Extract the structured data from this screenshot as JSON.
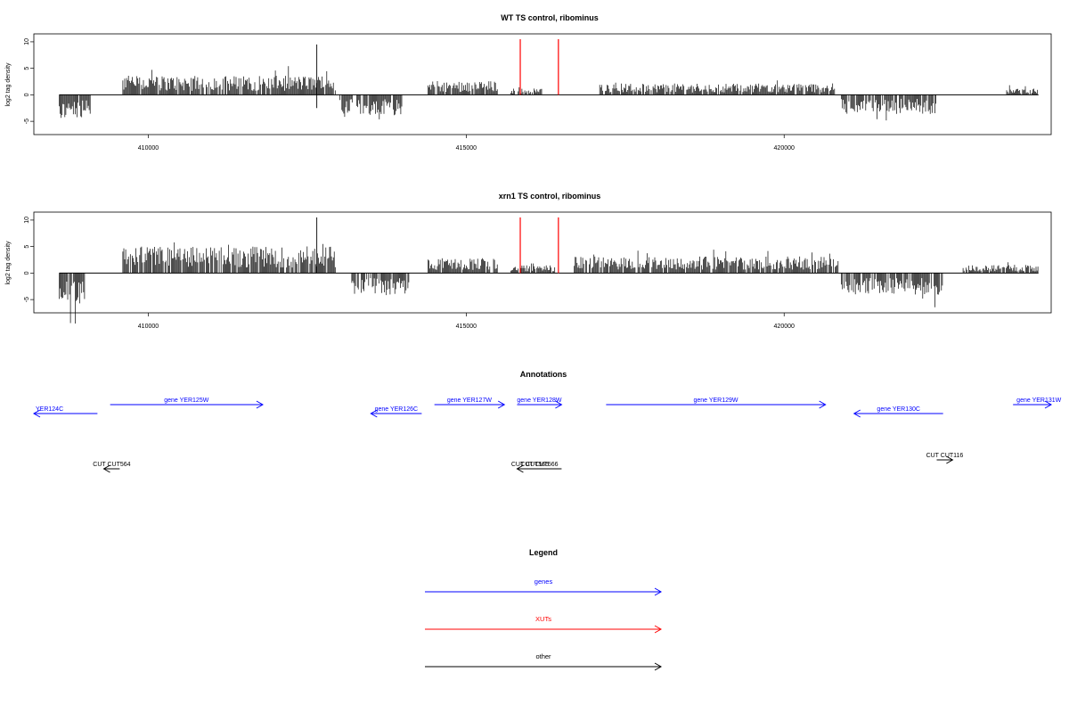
{
  "chart_data": [
    {
      "type": "bar",
      "title": "WT TS control, ribominus",
      "xlabel": "",
      "ylabel": "log2 tag density",
      "xlim": [
        408200,
        424200
      ],
      "ylim": [
        -7.5,
        11.5
      ],
      "yticks": [
        -5,
        0,
        5,
        10
      ],
      "xticks": [
        410000,
        415000,
        420000
      ],
      "highlight_lines": [
        {
          "x": 415850,
          "y": 10.5,
          "color": "#ff0000"
        },
        {
          "x": 416450,
          "y": 10.5,
          "color": "#ff0000"
        }
      ],
      "segments": [
        {
          "start": 408600,
          "end": 409100,
          "level": -4.0
        },
        {
          "start": 409600,
          "end": 412950,
          "level": 3.0
        },
        {
          "start": 413000,
          "end": 414000,
          "level": -3.2
        },
        {
          "start": 414400,
          "end": 415500,
          "level": 2.2
        },
        {
          "start": 415700,
          "end": 416200,
          "level": 1.0
        },
        {
          "start": 417100,
          "end": 420800,
          "level": 1.8
        },
        {
          "start": 420900,
          "end": 422400,
          "level": -3.0
        },
        {
          "start": 423500,
          "end": 424000,
          "level": 1.0
        }
      ],
      "peaks": [
        {
          "x": 412650,
          "y": 9.5
        },
        {
          "x": 412650,
          "y": -2.5
        }
      ]
    },
    {
      "type": "bar",
      "title": "xrn1 TS control, ribominus",
      "xlabel": "",
      "ylabel": "log2 tag density",
      "xlim": [
        408200,
        424200
      ],
      "ylim": [
        -7.5,
        11.5
      ],
      "yticks": [
        -5,
        0,
        5,
        10
      ],
      "xticks": [
        410000,
        415000,
        420000
      ],
      "highlight_lines": [
        {
          "x": 415850,
          "y": 10.5,
          "color": "#ff0000"
        },
        {
          "x": 416450,
          "y": 10.5,
          "color": "#ff0000"
        }
      ],
      "segments": [
        {
          "start": 408600,
          "end": 409000,
          "level": -5.0
        },
        {
          "start": 409600,
          "end": 412950,
          "level": 4.2
        },
        {
          "start": 413200,
          "end": 414100,
          "level": -3.5
        },
        {
          "start": 414400,
          "end": 415500,
          "level": 2.4
        },
        {
          "start": 415700,
          "end": 416400,
          "level": 1.2
        },
        {
          "start": 416700,
          "end": 420850,
          "level": 2.6
        },
        {
          "start": 420900,
          "end": 422500,
          "level": -3.5
        },
        {
          "start": 422800,
          "end": 424000,
          "level": 1.3
        }
      ],
      "peaks": [
        {
          "x": 412650,
          "y": 10.5
        }
      ]
    }
  ],
  "annotations": {
    "title": "Annotations",
    "genes": [
      {
        "label": "YER124C",
        "start": 408200,
        "end": 409200,
        "dir": "left",
        "row": "lower"
      },
      {
        "label": "gene YER125W",
        "start": 409400,
        "end": 411800,
        "dir": "right",
        "row": "upper"
      },
      {
        "label": "gene YER126C",
        "start": 413500,
        "end": 414300,
        "dir": "left",
        "row": "lower"
      },
      {
        "label": "gene YER127W",
        "start": 414500,
        "end": 415600,
        "dir": "right",
        "row": "upper"
      },
      {
        "label": "gene YER128W",
        "start": 415800,
        "end": 416500,
        "dir": "right",
        "row": "upper"
      },
      {
        "label": "gene YER129W",
        "start": 417200,
        "end": 420650,
        "dir": "right",
        "row": "upper"
      },
      {
        "label": "gene YER130C",
        "start": 421100,
        "end": 422500,
        "dir": "left",
        "row": "lower"
      },
      {
        "label": "gene YER131W",
        "start": 423600,
        "end": 424200,
        "dir": "right",
        "row": "upper"
      }
    ],
    "other": [
      {
        "label": "CUT CUT564",
        "start": 409300,
        "end": 409550,
        "dir": "left"
      },
      {
        "label": "CUT CUT566",
        "start": 415800,
        "end": 416500,
        "dir": "left",
        "label_offset": 1
      },
      {
        "label": "CUT CUT116",
        "start": 422400,
        "end": 422650,
        "dir": "right"
      }
    ],
    "other_label_extra": "CUT CUT565"
  },
  "legend": {
    "title": "Legend",
    "items": [
      {
        "label": "genes",
        "color": "#0000ff"
      },
      {
        "label": "XUTs",
        "color": "#ff0000"
      },
      {
        "label": "other",
        "color": "#000000"
      }
    ]
  }
}
